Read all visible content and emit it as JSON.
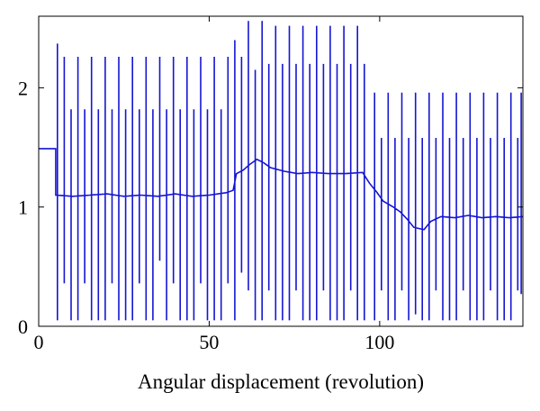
{
  "chart_data": {
    "type": "line",
    "title": "",
    "xlabel": "Angular displacement (revolution)",
    "ylabel": "",
    "xlim": [
      0,
      142
    ],
    "ylim": [
      0,
      2.6
    ],
    "xticks": [
      0,
      50,
      100
    ],
    "yticks": [
      0,
      1,
      2
    ],
    "grid": false,
    "legend": "none",
    "line_color": "#1515d2",
    "series": [
      {
        "baseline": [
          [
            0,
            1.49
          ],
          [
            5,
            1.49
          ],
          [
            5,
            1.1
          ],
          [
            10,
            1.09
          ],
          [
            15,
            1.1
          ],
          [
            20,
            1.11
          ],
          [
            25,
            1.09
          ],
          [
            30,
            1.1
          ],
          [
            35,
            1.09
          ],
          [
            40,
            1.11
          ],
          [
            45,
            1.09
          ],
          [
            50,
            1.1
          ],
          [
            55,
            1.12
          ],
          [
            57,
            1.14
          ],
          [
            58,
            1.28
          ],
          [
            60,
            1.31
          ],
          [
            62,
            1.36
          ],
          [
            64,
            1.4
          ],
          [
            66,
            1.37
          ],
          [
            68,
            1.33
          ],
          [
            72,
            1.3
          ],
          [
            76,
            1.28
          ],
          [
            80,
            1.29
          ],
          [
            85,
            1.28
          ],
          [
            90,
            1.28
          ],
          [
            95,
            1.29
          ],
          [
            97,
            1.2
          ],
          [
            99,
            1.13
          ],
          [
            101,
            1.05
          ],
          [
            104,
            1.0
          ],
          [
            106,
            0.96
          ],
          [
            108,
            0.9
          ],
          [
            110,
            0.83
          ],
          [
            113,
            0.81
          ],
          [
            115,
            0.88
          ],
          [
            118,
            0.92
          ],
          [
            122,
            0.91
          ],
          [
            126,
            0.93
          ],
          [
            130,
            0.91
          ],
          [
            134,
            0.92
          ],
          [
            138,
            0.91
          ],
          [
            142,
            0.92
          ]
        ],
        "spikes": [
          [
            5.5,
            2.37,
            0.05
          ],
          [
            7.5,
            2.26,
            0.36
          ],
          [
            9.5,
            1.82,
            0.05
          ],
          [
            11.5,
            2.26,
            0.05
          ],
          [
            13.5,
            1.82,
            0.36
          ],
          [
            15.5,
            2.26,
            0.05
          ],
          [
            17.5,
            1.82,
            0.05
          ],
          [
            19.5,
            2.26,
            0.05
          ],
          [
            21.5,
            1.82,
            0.36
          ],
          [
            23.5,
            2.26,
            0.05
          ],
          [
            25.5,
            1.82,
            0.05
          ],
          [
            27.5,
            2.26,
            0.05
          ],
          [
            29.5,
            1.82,
            0.36
          ],
          [
            31.5,
            2.26,
            0.05
          ],
          [
            33.5,
            1.82,
            0.05
          ],
          [
            35.5,
            2.26,
            0.55
          ],
          [
            37.5,
            1.82,
            0.05
          ],
          [
            39.5,
            2.26,
            0.36
          ],
          [
            41.5,
            1.82,
            0.05
          ],
          [
            43.5,
            2.26,
            0.05
          ],
          [
            45.5,
            1.82,
            0.05
          ],
          [
            47.5,
            2.26,
            0.36
          ],
          [
            49.5,
            1.82,
            0.05
          ],
          [
            51.5,
            2.26,
            0.05
          ],
          [
            53.5,
            1.82,
            0.05
          ],
          [
            55.5,
            2.26,
            0.36
          ],
          [
            57.5,
            2.4,
            0.05
          ],
          [
            59.5,
            2.26,
            0.45
          ],
          [
            61.5,
            2.56,
            0.3
          ],
          [
            63.5,
            2.15,
            0.05
          ],
          [
            65.5,
            2.56,
            0.05
          ],
          [
            67.5,
            2.2,
            0.3
          ],
          [
            69.5,
            2.52,
            0.05
          ],
          [
            71.5,
            2.2,
            0.05
          ],
          [
            73.5,
            2.52,
            0.05
          ],
          [
            75.5,
            2.2,
            0.3
          ],
          [
            77.5,
            2.52,
            0.05
          ],
          [
            79.5,
            2.2,
            0.05
          ],
          [
            81.5,
            2.52,
            0.05
          ],
          [
            83.5,
            2.2,
            0.3
          ],
          [
            85.5,
            2.52,
            0.05
          ],
          [
            87.5,
            2.2,
            0.05
          ],
          [
            89.5,
            2.52,
            0.05
          ],
          [
            91.5,
            2.2,
            0.3
          ],
          [
            93.5,
            2.52,
            0.05
          ],
          [
            95.5,
            2.2,
            0.05
          ],
          [
            98.5,
            1.96,
            0.05
          ],
          [
            100.5,
            1.58,
            0.3
          ],
          [
            102.5,
            1.96,
            0.05
          ],
          [
            104.5,
            1.58,
            0.05
          ],
          [
            106.5,
            1.96,
            0.3
          ],
          [
            108.5,
            1.58,
            0.05
          ],
          [
            110.5,
            1.96,
            0.1
          ],
          [
            112.5,
            1.58,
            0.05
          ],
          [
            114.5,
            1.96,
            0.05
          ],
          [
            116.5,
            1.58,
            0.3
          ],
          [
            118.5,
            1.96,
            0.05
          ],
          [
            120.5,
            1.58,
            0.05
          ],
          [
            122.5,
            1.96,
            0.05
          ],
          [
            124.5,
            1.58,
            0.3
          ],
          [
            126.5,
            1.96,
            0.05
          ],
          [
            128.5,
            1.58,
            0.05
          ],
          [
            130.5,
            1.96,
            0.05
          ],
          [
            132.5,
            1.58,
            0.3
          ],
          [
            134.5,
            1.96,
            0.05
          ],
          [
            136.5,
            1.58,
            0.05
          ],
          [
            138.5,
            1.96,
            0.05
          ],
          [
            140.5,
            1.58,
            0.3
          ],
          [
            141.5,
            1.96,
            0.27
          ]
        ]
      }
    ]
  }
}
